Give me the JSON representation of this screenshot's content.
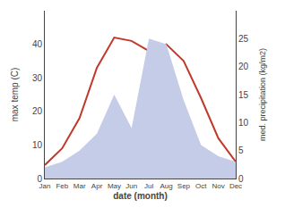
{
  "chart_data": {
    "type": "line",
    "categories": [
      "Jan",
      "Feb",
      "Mar",
      "Apr",
      "May",
      "Jun",
      "Jul",
      "Aug",
      "Sep",
      "Oct",
      "Nov",
      "Dec"
    ],
    "series": [
      {
        "type": "area",
        "axis": "y2",
        "color": "#c5cce8",
        "values": [
          2,
          3,
          5,
          8,
          15,
          9,
          25,
          24,
          14,
          6,
          4,
          3
        ]
      },
      {
        "type": "line",
        "color": "#c0392b",
        "values": [
          4,
          9,
          18,
          33,
          42,
          41,
          38,
          40,
          35,
          24,
          12,
          5
        ]
      }
    ],
    "xlabel": "date (month)",
    "ylabel": "max temp (C)",
    "y2label": "med. precipitation (kg/m2)",
    "ylim": [
      0,
      50
    ],
    "yticks": [
      0,
      10,
      20,
      30,
      40
    ],
    "y2lim": [
      0,
      30
    ],
    "y2ticks": [
      0,
      5,
      10,
      15,
      20,
      25
    ],
    "grid": false
  }
}
